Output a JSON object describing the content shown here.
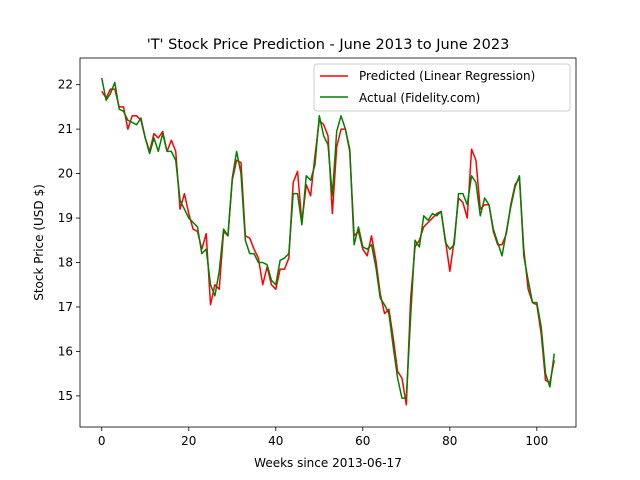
{
  "chart_data": {
    "type": "line",
    "title": "'T' Stock Price Prediction - June 2013 to June 2023",
    "xlabel": "Weeks since 2013-06-17",
    "ylabel": "Stock Price (USD $)",
    "xlim": [
      -5,
      109
    ],
    "ylim": [
      14.3,
      22.6
    ],
    "xticks": [
      0,
      20,
      40,
      60,
      80,
      100
    ],
    "yticks": [
      15,
      16,
      17,
      18,
      19,
      20,
      21,
      22
    ],
    "grid": false,
    "legend_position": "top-right",
    "series": [
      {
        "name": "Predicted (Linear Regression)",
        "color": "#ff0000",
        "values": [
          21.85,
          21.7,
          21.9,
          21.9,
          21.5,
          21.5,
          21.0,
          21.3,
          21.3,
          21.2,
          20.8,
          20.5,
          20.9,
          20.8,
          20.95,
          20.5,
          20.75,
          20.5,
          19.2,
          19.55,
          19.1,
          18.75,
          18.7,
          18.3,
          18.65,
          17.05,
          17.5,
          17.4,
          18.7,
          18.6,
          19.85,
          20.3,
          20.25,
          18.6,
          18.55,
          18.3,
          18.1,
          17.5,
          17.9,
          17.5,
          17.4,
          17.85,
          17.85,
          18.1,
          19.8,
          20.05,
          18.9,
          19.75,
          19.5,
          20.4,
          21.2,
          21.1,
          20.85,
          19.1,
          20.6,
          21.0,
          21.0,
          20.5,
          18.6,
          18.7,
          18.3,
          18.15,
          18.6,
          18.05,
          17.3,
          16.85,
          16.95,
          16.3,
          15.55,
          15.4,
          14.8,
          17.2,
          18.35,
          18.5,
          18.8,
          18.9,
          19.0,
          19.1,
          19.15,
          18.5,
          17.8,
          18.5,
          19.45,
          19.35,
          19.0,
          20.55,
          20.3,
          19.2,
          19.3,
          19.3,
          18.7,
          18.4,
          18.4,
          18.65,
          19.3,
          19.75,
          19.9,
          18.3,
          17.4,
          17.1,
          17.05,
          16.4,
          15.35,
          15.3,
          15.8
        ]
      },
      {
        "name": "Actual (Fidelity.com)",
        "color": "#008000",
        "values": [
          22.15,
          21.65,
          21.8,
          22.05,
          21.45,
          21.4,
          21.2,
          21.15,
          21.1,
          21.25,
          20.8,
          20.45,
          20.8,
          20.5,
          20.9,
          20.5,
          20.5,
          20.3,
          19.4,
          19.2,
          19.0,
          18.9,
          18.8,
          18.2,
          18.3,
          17.5,
          17.25,
          17.8,
          18.75,
          18.6,
          19.9,
          20.5,
          20.0,
          18.5,
          18.2,
          18.2,
          18.0,
          18.0,
          17.95,
          17.6,
          17.5,
          18.05,
          18.1,
          18.2,
          19.55,
          19.55,
          18.85,
          19.95,
          19.85,
          20.2,
          21.3,
          20.85,
          20.65,
          19.5,
          20.95,
          21.3,
          21.0,
          20.55,
          18.4,
          18.8,
          18.35,
          18.3,
          18.4,
          17.9,
          17.2,
          17.05,
          16.85,
          16.1,
          15.4,
          14.95,
          14.95,
          16.8,
          18.5,
          18.35,
          19.05,
          18.95,
          19.1,
          19.05,
          19.15,
          18.45,
          18.3,
          18.4,
          19.55,
          19.55,
          19.3,
          19.95,
          19.8,
          19.05,
          19.45,
          19.3,
          18.75,
          18.45,
          18.15,
          18.7,
          19.25,
          19.7,
          19.95,
          18.15,
          17.6,
          17.1,
          17.1,
          16.55,
          15.5,
          15.2,
          15.95
        ]
      }
    ]
  }
}
